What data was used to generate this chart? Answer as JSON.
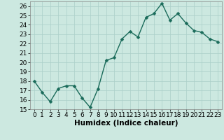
{
  "x": [
    0,
    1,
    2,
    3,
    4,
    5,
    6,
    7,
    8,
    9,
    10,
    11,
    12,
    13,
    14,
    15,
    16,
    17,
    18,
    19,
    20,
    21,
    22,
    23
  ],
  "y": [
    18,
    16.8,
    15.8,
    17.2,
    17.5,
    17.5,
    16.2,
    15.2,
    17.2,
    20.2,
    20.5,
    22.5,
    23.3,
    22.7,
    24.8,
    25.2,
    26.3,
    24.5,
    25.2,
    24.2,
    23.4,
    23.2,
    22.5,
    22.2
  ],
  "bg_color": "#cce8e0",
  "line_color": "#1a6b5a",
  "marker_color": "#1a6b5a",
  "grid_color": "#aacfc8",
  "xlabel": "Humidex (Indice chaleur)",
  "ylim": [
    15,
    26.5
  ],
  "xlim": [
    -0.5,
    23.5
  ],
  "yticks": [
    15,
    16,
    17,
    18,
    19,
    20,
    21,
    22,
    23,
    24,
    25,
    26
  ],
  "xticks": [
    0,
    1,
    2,
    3,
    4,
    5,
    6,
    7,
    8,
    9,
    10,
    11,
    12,
    13,
    14,
    15,
    16,
    17,
    18,
    19,
    20,
    21,
    22,
    23
  ],
  "xlabel_fontsize": 7.5,
  "tick_fontsize": 6.5,
  "line_width": 1.0,
  "marker_size": 2.5
}
